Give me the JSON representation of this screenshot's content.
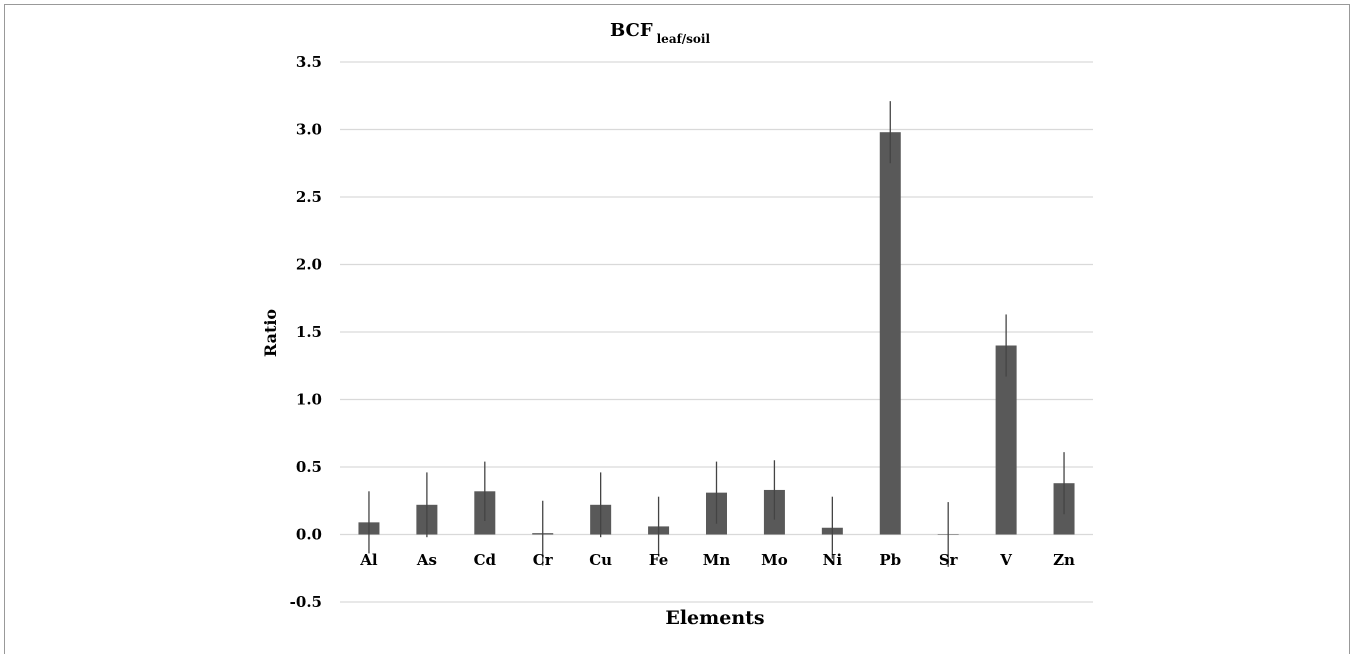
{
  "chart_data": {
    "type": "bar",
    "title": "BCF",
    "title_subscript": "leaf/soil",
    "xlabel": "Elements",
    "ylabel": "Ratio",
    "ylim": [
      -0.5,
      3.5
    ],
    "yticks": [
      "-0.5",
      "0.0",
      "0.5",
      "1.0",
      "1.5",
      "2.0",
      "2.5",
      "3.0",
      "3.5"
    ],
    "grid": true,
    "legend": "none",
    "bar_color": "#595959",
    "categories": [
      "Al",
      "As",
      "Cd",
      "Cr",
      "Cu",
      "Fe",
      "Mn",
      "Mo",
      "Ni",
      "Pb",
      "Sr",
      "V",
      "Zn"
    ],
    "values": [
      0.09,
      0.22,
      0.32,
      0.01,
      0.22,
      0.06,
      0.31,
      0.33,
      0.05,
      2.98,
      0.0,
      1.4,
      0.38
    ],
    "error": [
      0.23,
      0.24,
      0.22,
      0.24,
      0.24,
      0.22,
      0.23,
      0.22,
      0.23,
      0.23,
      0.24,
      0.23,
      0.23
    ]
  }
}
